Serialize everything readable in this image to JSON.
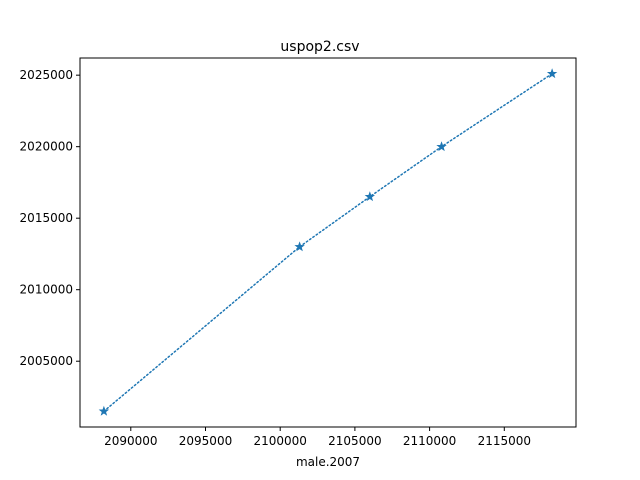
{
  "chart_data": {
    "type": "line",
    "title": "uspop2.csv",
    "xlabel": "male.2007",
    "ylabel": "",
    "xlim": [
      2086600,
      2119800
    ],
    "ylim": [
      2000400,
      2026200
    ],
    "x_ticks": [
      "2090000",
      "2095000",
      "2100000",
      "2105000",
      "2110000",
      "2115000"
    ],
    "y_ticks": [
      "2005000",
      "2010000",
      "2015000",
      "2020000",
      "2025000"
    ],
    "x_tick_values": [
      2090000,
      2095000,
      2100000,
      2105000,
      2110000,
      2115000
    ],
    "y_tick_values": [
      2005000,
      2010000,
      2015000,
      2020000,
      2025000
    ],
    "grid": false,
    "line_style": "dotted",
    "marker": "star",
    "color": "#1f77b4",
    "series": [
      {
        "x": [
          2088200,
          2101300,
          2106000,
          2110800,
          2118200
        ],
        "y": [
          2001500,
          2013000,
          2016500,
          2020000,
          2025100
        ]
      }
    ]
  }
}
